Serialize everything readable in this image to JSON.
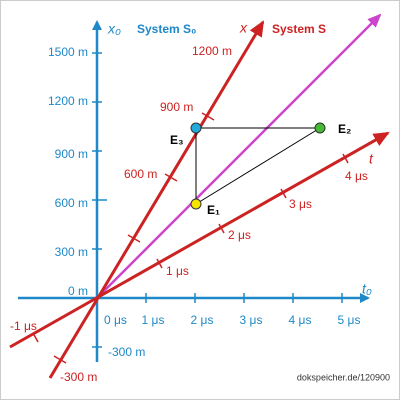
{
  "frame_s0": {
    "name": "System S₀",
    "time_axis": "t₀",
    "space_axis": "x₀",
    "time_ticks": [
      "0 μs",
      "1 μs",
      "2 μs",
      "3 μs",
      "4 μs",
      "5 μs"
    ],
    "space_ticks": [
      "1500 m",
      "1200 m",
      "900 m",
      "600 m",
      "300 m",
      "0 m",
      "-300 m"
    ]
  },
  "frame_s": {
    "name": "System S",
    "time_axis": "t",
    "space_axis": "x",
    "time_ticks": [
      "-1 μs",
      "1 μs",
      "2 μs",
      "3 μs",
      "4 μs"
    ],
    "space_ticks": [
      "-300 m",
      "600 m",
      "900 m",
      "1200 m"
    ]
  },
  "events": [
    "E₁",
    "E₂",
    "E₃"
  ],
  "credit": "dokspeicher.de/120900"
}
